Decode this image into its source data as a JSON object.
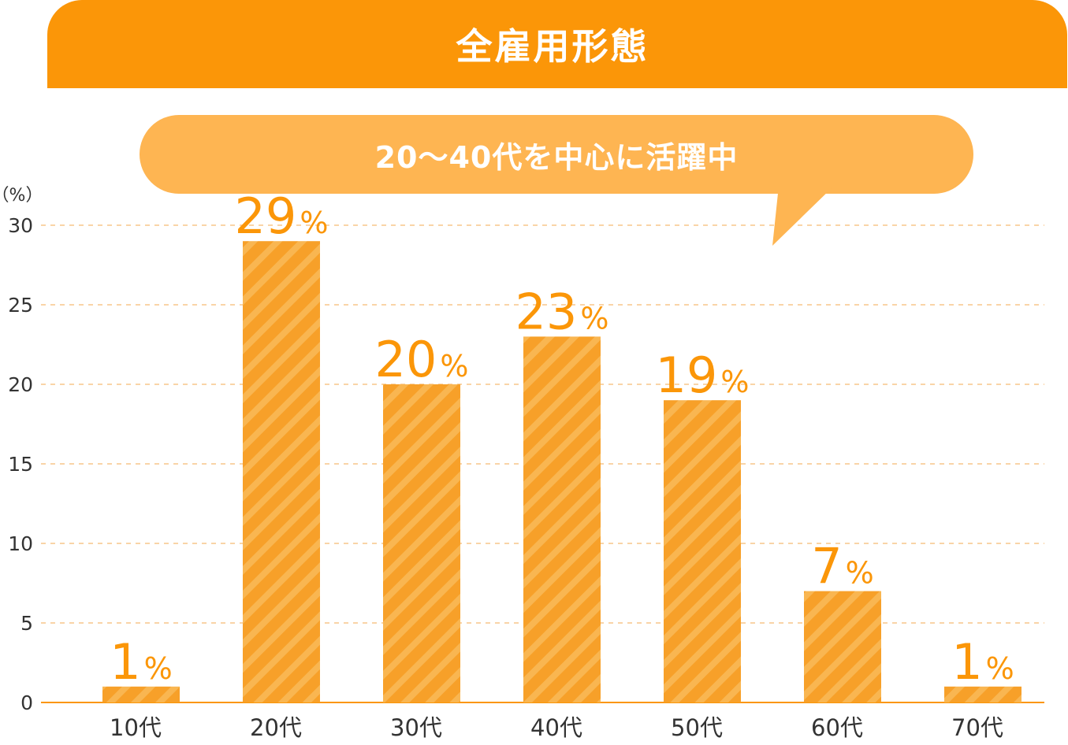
{
  "header": {
    "title": "全雇用形態"
  },
  "callout": {
    "text": "20～40代を中心に活躍中"
  },
  "chart_data": {
    "type": "bar",
    "title": "全雇用形態",
    "y_unit_label": "（%）",
    "ylim": [
      0,
      30
    ],
    "yticks": [
      0,
      5,
      10,
      15,
      20,
      25,
      30
    ],
    "grid": true,
    "categories": [
      "10代",
      "20代",
      "30代",
      "40代",
      "50代",
      "60代",
      "70代"
    ],
    "values": [
      1,
      29,
      20,
      23,
      19,
      7,
      1
    ],
    "value_labels": [
      "1",
      "29",
      "20",
      "23",
      "19",
      "7",
      "1"
    ],
    "value_suffix": "%"
  },
  "colors": {
    "bar": "#f7a029",
    "bar_stripe": "#f9b651",
    "accent": "#fb9608",
    "callout": "#feb552",
    "grid": "#f7c58a",
    "axis_text": "#333333"
  }
}
